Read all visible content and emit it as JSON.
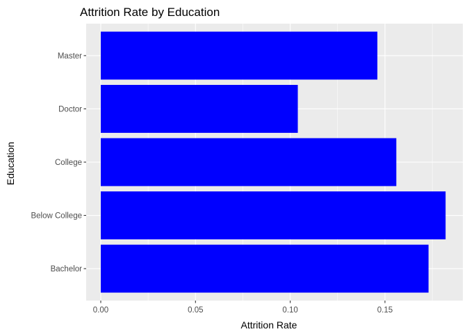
{
  "chart_data": {
    "type": "bar",
    "orientation": "horizontal",
    "title": "Attrition Rate by Education",
    "xlabel": "Attrition Rate",
    "ylabel": "Education",
    "categories": [
      "Bachelor",
      "Below College",
      "College",
      "Doctor",
      "Master"
    ],
    "values": [
      0.173,
      0.182,
      0.156,
      0.104,
      0.146
    ],
    "xlim": [
      -0.0077,
      0.1911
    ],
    "xticks": [
      0.0,
      0.05,
      0.1,
      0.15
    ],
    "xtick_labels": [
      "0.00",
      "0.05",
      "0.10",
      "0.15"
    ],
    "grid": true,
    "legend": "none",
    "colors": {
      "bar": "#0000ff",
      "panel_background": "#ebebeb",
      "grid": "#ffffff"
    }
  }
}
